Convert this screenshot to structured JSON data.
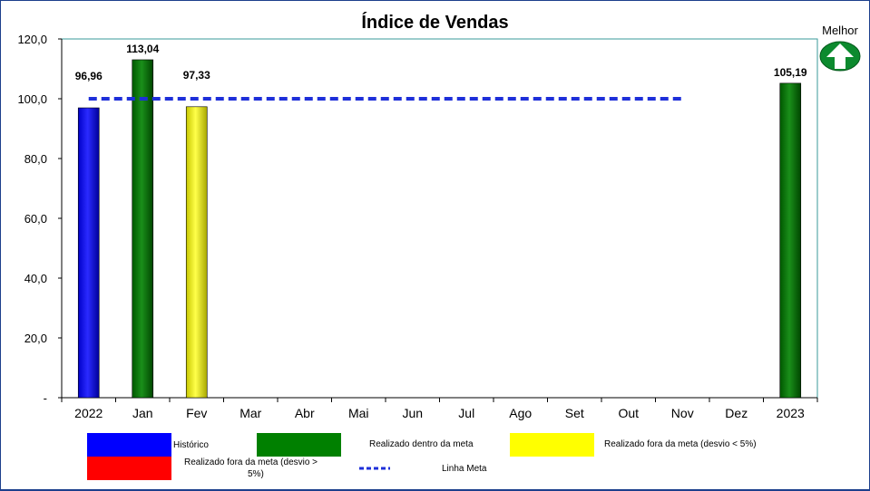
{
  "chart_data": {
    "type": "bar",
    "title": "Índice de Vendas",
    "categories": [
      "2022",
      "Jan",
      "Fev",
      "Mar",
      "Abr",
      "Mai",
      "Jun",
      "Jul",
      "Ago",
      "Set",
      "Out",
      "Nov",
      "Dez",
      "2023"
    ],
    "values": [
      96.96,
      113.04,
      97.33,
      null,
      null,
      null,
      null,
      null,
      null,
      null,
      null,
      null,
      null,
      105.19
    ],
    "value_labels": [
      "96,96",
      "113,04",
      "97,33",
      "",
      "",
      "",
      "",
      "",
      "",
      "",
      "",
      "",
      "",
      "105,19"
    ],
    "bar_status": [
      "historico",
      "dentro",
      "fora_menor",
      "",
      "",
      "",
      "",
      "",
      "",
      "",
      "",
      "",
      "",
      "dentro"
    ],
    "ylim": [
      0,
      120
    ],
    "yticks": [
      0,
      20,
      40,
      60,
      80,
      100,
      120
    ],
    "ytick_labels": [
      "-",
      "20,0",
      "40,0",
      "60,0",
      "80,0",
      "100,0",
      "120,0"
    ],
    "target": {
      "name": "Linha Meta",
      "value": 100,
      "from_category": "2022",
      "to_category": "Nov"
    },
    "xlabel": "",
    "ylabel": ""
  },
  "indicator": {
    "label": "Melhor",
    "direction": "up"
  },
  "legend": {
    "historico": "Histórico",
    "dentro": "Realizado dentro da meta",
    "fora_menor": "Realizado fora da meta (desvio < 5%)",
    "fora_maior_line1": "Realizado fora da meta (desvio >",
    "fora_maior_line2": "5%)",
    "meta": "Linha Meta"
  },
  "colors": {
    "historico": "#0000ff",
    "dentro": "#008000",
    "fora_menor": "#ffff00",
    "fora_maior": "#ff0000",
    "meta": "#1e2fd9",
    "plot_border": "#3a9a9a",
    "arrow": "#0c8a2e"
  }
}
